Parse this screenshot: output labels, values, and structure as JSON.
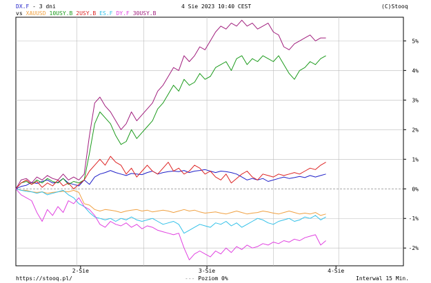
{
  "header": {
    "main_symbol": "DX.F",
    "period": "- 3 dni",
    "date": "4 Sie 2023 10:40 CEST",
    "copyright": "(C)Stooq",
    "vs_label": "vs"
  },
  "footer": {
    "url": "https://stooq.pl/",
    "reference_marker": "---",
    "reference_label": "Poziom 0%",
    "interval": "Interwal 15 Min."
  },
  "colors": {
    "DX.F": "#1f1fc8",
    "XAUUSD": "#f0a040",
    "10USY.B": "#1a9a1a",
    "2USY.B": "#dd2222",
    "ES.F": "#30c0e8",
    "DY.F": "#e040e0",
    "30USY.B": "#a01c7c",
    "grid": "#bbbbbb",
    "zero_line": "#888888"
  },
  "chart_data": {
    "type": "line",
    "xlabel": "",
    "ylabel": "",
    "x_ticks": [
      "2-Sie",
      "3-Sie",
      "4-Sie"
    ],
    "y_ticks": [
      "5%",
      "4%",
      "3%",
      "2%",
      "1%",
      "0%",
      "-1%",
      "-2%"
    ],
    "y_tick_values": [
      5,
      4,
      3,
      2,
      1,
      0,
      -1,
      -2
    ],
    "ylim": [
      -2.6,
      5.8
    ],
    "xlim": [
      0,
      100
    ],
    "zero_line": true,
    "grid": true,
    "series": [
      {
        "name": "DX.F",
        "values": [
          0,
          0.08,
          0.12,
          0.22,
          0.18,
          0.25,
          0.3,
          0.2,
          0.22,
          0.35,
          0.2,
          0.15,
          0.1,
          0.3,
          0.15,
          0.4,
          0.5,
          0.55,
          0.62,
          0.55,
          0.5,
          0.45,
          0.52,
          0.5,
          0.48,
          0.55,
          0.6,
          0.5,
          0.55,
          0.58,
          0.6,
          0.58,
          0.62,
          0.55,
          0.6,
          0.62,
          0.65,
          0.6,
          0.55,
          0.6,
          0.58,
          0.55,
          0.5,
          0.4,
          0.3,
          0.35,
          0.3,
          0.35,
          0.25,
          0.3,
          0.35,
          0.4,
          0.35,
          0.38,
          0.42,
          0.38,
          0.45,
          0.4,
          0.45,
          0.5
        ]
      },
      {
        "name": "XAUUSD",
        "values": [
          0,
          -0.05,
          -0.05,
          -0.1,
          -0.12,
          -0.1,
          -0.15,
          -0.12,
          -0.1,
          -0.08,
          -0.1,
          -0.05,
          -0.12,
          -0.5,
          -0.55,
          -0.7,
          -0.75,
          -0.7,
          -0.72,
          -0.75,
          -0.8,
          -0.75,
          -0.72,
          -0.7,
          -0.75,
          -0.72,
          -0.78,
          -0.75,
          -0.72,
          -0.75,
          -0.8,
          -0.75,
          -0.7,
          -0.75,
          -0.72,
          -0.78,
          -0.82,
          -0.8,
          -0.78,
          -0.82,
          -0.85,
          -0.8,
          -0.75,
          -0.8,
          -0.85,
          -0.82,
          -0.8,
          -0.75,
          -0.78,
          -0.82,
          -0.85,
          -0.8,
          -0.75,
          -0.8,
          -0.85,
          -0.82,
          -0.85,
          -0.8,
          -0.9,
          -0.85
        ]
      },
      {
        "name": "10USY.B",
        "values": [
          0,
          0.2,
          0.25,
          0.15,
          0.3,
          0.2,
          0.35,
          0.25,
          0.2,
          0.35,
          0.15,
          0.25,
          0.2,
          0.3,
          1.2,
          2.2,
          2.6,
          2.4,
          2.2,
          1.8,
          1.5,
          1.6,
          2.0,
          1.7,
          1.9,
          2.1,
          2.3,
          2.7,
          2.9,
          3.2,
          3.5,
          3.3,
          3.7,
          3.5,
          3.6,
          3.9,
          3.7,
          3.8,
          4.1,
          4.2,
          4.3,
          4.0,
          4.4,
          4.5,
          4.2,
          4.4,
          4.3,
          4.5,
          4.4,
          4.3,
          4.5,
          4.2,
          3.9,
          3.7,
          4.0,
          4.1,
          4.3,
          4.2,
          4.4,
          4.5
        ]
      },
      {
        "name": "2USY.B",
        "values": [
          0,
          0.2,
          0.3,
          0.15,
          0.25,
          0.05,
          0.2,
          0.1,
          0.3,
          0.1,
          0.2,
          0.0,
          0.15,
          0.3,
          0.6,
          0.8,
          1.0,
          0.8,
          1.1,
          0.9,
          0.8,
          0.5,
          0.7,
          0.4,
          0.6,
          0.8,
          0.6,
          0.5,
          0.7,
          0.9,
          0.6,
          0.7,
          0.5,
          0.6,
          0.8,
          0.7,
          0.5,
          0.6,
          0.4,
          0.3,
          0.5,
          0.2,
          0.35,
          0.5,
          0.6,
          0.4,
          0.3,
          0.5,
          0.45,
          0.4,
          0.5,
          0.45,
          0.5,
          0.55,
          0.5,
          0.6,
          0.7,
          0.65,
          0.8,
          0.9
        ]
      },
      {
        "name": "ES.F",
        "values": [
          0,
          -0.05,
          -0.08,
          -0.1,
          -0.15,
          -0.1,
          -0.2,
          -0.15,
          -0.1,
          -0.05,
          -0.2,
          -0.3,
          -0.5,
          -0.6,
          -0.8,
          -0.95,
          -1.0,
          -1.05,
          -1.0,
          -1.1,
          -1.0,
          -1.05,
          -0.95,
          -1.05,
          -1.1,
          -1.05,
          -1.0,
          -1.1,
          -1.2,
          -1.15,
          -1.1,
          -1.2,
          -1.5,
          -1.4,
          -1.3,
          -1.2,
          -1.25,
          -1.3,
          -1.15,
          -1.2,
          -1.1,
          -1.25,
          -1.15,
          -1.3,
          -1.2,
          -1.1,
          -1.0,
          -1.05,
          -1.15,
          -1.2,
          -1.1,
          -1.05,
          -1.0,
          -1.1,
          -1.05,
          -0.95,
          -1.0,
          -0.9,
          -1.05,
          -0.95
        ]
      },
      {
        "name": "DY.F",
        "values": [
          0,
          -0.2,
          -0.3,
          -0.4,
          -0.8,
          -1.1,
          -0.7,
          -0.9,
          -0.6,
          -0.8,
          -0.4,
          -0.5,
          -0.3,
          -0.6,
          -0.7,
          -0.9,
          -1.2,
          -1.3,
          -1.1,
          -1.2,
          -1.25,
          -1.15,
          -1.3,
          -1.2,
          -1.35,
          -1.25,
          -1.3,
          -1.4,
          -1.45,
          -1.5,
          -1.55,
          -1.5,
          -2.0,
          -2.4,
          -2.2,
          -2.1,
          -2.2,
          -2.3,
          -2.1,
          -2.2,
          -2.0,
          -2.15,
          -1.95,
          -2.05,
          -1.9,
          -2.0,
          -1.95,
          -1.85,
          -1.9,
          -1.8,
          -1.85,
          -1.75,
          -1.8,
          -1.7,
          -1.75,
          -1.65,
          -1.6,
          -1.55,
          -1.9,
          -1.75
        ]
      },
      {
        "name": "30USY.B",
        "values": [
          0,
          0.3,
          0.35,
          0.2,
          0.4,
          0.3,
          0.45,
          0.35,
          0.3,
          0.5,
          0.3,
          0.4,
          0.3,
          0.5,
          1.8,
          2.9,
          3.1,
          2.8,
          2.6,
          2.3,
          2.0,
          2.2,
          2.6,
          2.3,
          2.5,
          2.7,
          2.9,
          3.3,
          3.5,
          3.8,
          4.1,
          4.0,
          4.5,
          4.3,
          4.5,
          4.8,
          4.7,
          5.0,
          5.3,
          5.5,
          5.4,
          5.6,
          5.5,
          5.7,
          5.5,
          5.6,
          5.4,
          5.5,
          5.6,
          5.3,
          5.2,
          4.8,
          4.7,
          4.9,
          5.0,
          5.1,
          5.2,
          5.0,
          5.1,
          5.1
        ]
      }
    ]
  }
}
